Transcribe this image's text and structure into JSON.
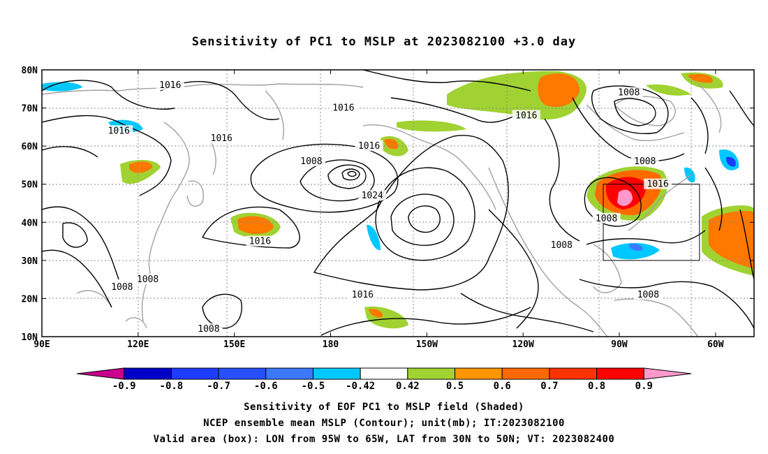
{
  "title": "Sensitivity of PC1 to MSLP at 2023082100 +3.0 day",
  "footer": {
    "line1": "Sensitivity of EOF PC1 to MSLP field (Shaded)",
    "line2": "NCEP ensemble mean MSLP (Contour); unit(mb); IT:2023082100",
    "line3": "Valid area (box): LON from 95W to 65W, LAT from 30N to 50N; VT: 2023082400"
  },
  "axes": {
    "lat_labels": [
      "80N",
      "70N",
      "60N",
      "50N",
      "40N",
      "30N",
      "20N",
      "10N"
    ],
    "lon_labels": [
      "90E",
      "120E",
      "150E",
      "180",
      "150W",
      "120W",
      "90W",
      "60W"
    ],
    "lon_range": [
      90,
      312
    ],
    "lat_range": [
      10,
      80
    ]
  },
  "colorbar": {
    "labels": [
      "-0.9",
      "-0.8",
      "-0.7",
      "-0.6",
      "-0.5",
      "-0.42",
      "0.42",
      "0.5",
      "0.6",
      "0.7",
      "0.8",
      "0.9"
    ],
    "colors": [
      "#c8008c",
      "#0000c8",
      "#1e3cff",
      "#2850ff",
      "#3c78ff",
      "#00c8ff",
      "#ffffff",
      "#a0d232",
      "#ff9600",
      "#ff6a00",
      "#ff3200",
      "#ff0000",
      "#ff99cc"
    ]
  },
  "valid_box": {
    "lon": [
      265,
      295
    ],
    "lat": [
      30,
      50
    ]
  },
  "contour_labels": [
    {
      "text": "1016",
      "lon": 130,
      "lat": 76
    },
    {
      "text": "1016",
      "lon": 114,
      "lat": 64
    },
    {
      "text": "1016",
      "lon": 146,
      "lat": 62
    },
    {
      "text": "1016",
      "lon": 184,
      "lat": 70
    },
    {
      "text": "1016",
      "lon": 192,
      "lat": 60
    },
    {
      "text": "1008",
      "lon": 174,
      "lat": 56
    },
    {
      "text": "1024",
      "lon": 193,
      "lat": 47
    },
    {
      "text": "1016",
      "lon": 158,
      "lat": 35
    },
    {
      "text": "1016",
      "lon": 190,
      "lat": 21
    },
    {
      "text": "1008",
      "lon": 115,
      "lat": 23
    },
    {
      "text": "1008",
      "lon": 123,
      "lat": 25
    },
    {
      "text": "1008",
      "lon": 142,
      "lat": 12
    },
    {
      "text": "1008",
      "lon": 252,
      "lat": 34
    },
    {
      "text": "1016",
      "lon": 241,
      "lat": 68
    },
    {
      "text": "1008",
      "lon": 273,
      "lat": 74
    },
    {
      "text": "1008",
      "lon": 278,
      "lat": 56
    },
    {
      "text": "1016",
      "lon": 282,
      "lat": 50
    },
    {
      "text": "1008",
      "lon": 266,
      "lat": 41
    },
    {
      "text": "1008",
      "lon": 279,
      "lat": 21
    }
  ]
}
